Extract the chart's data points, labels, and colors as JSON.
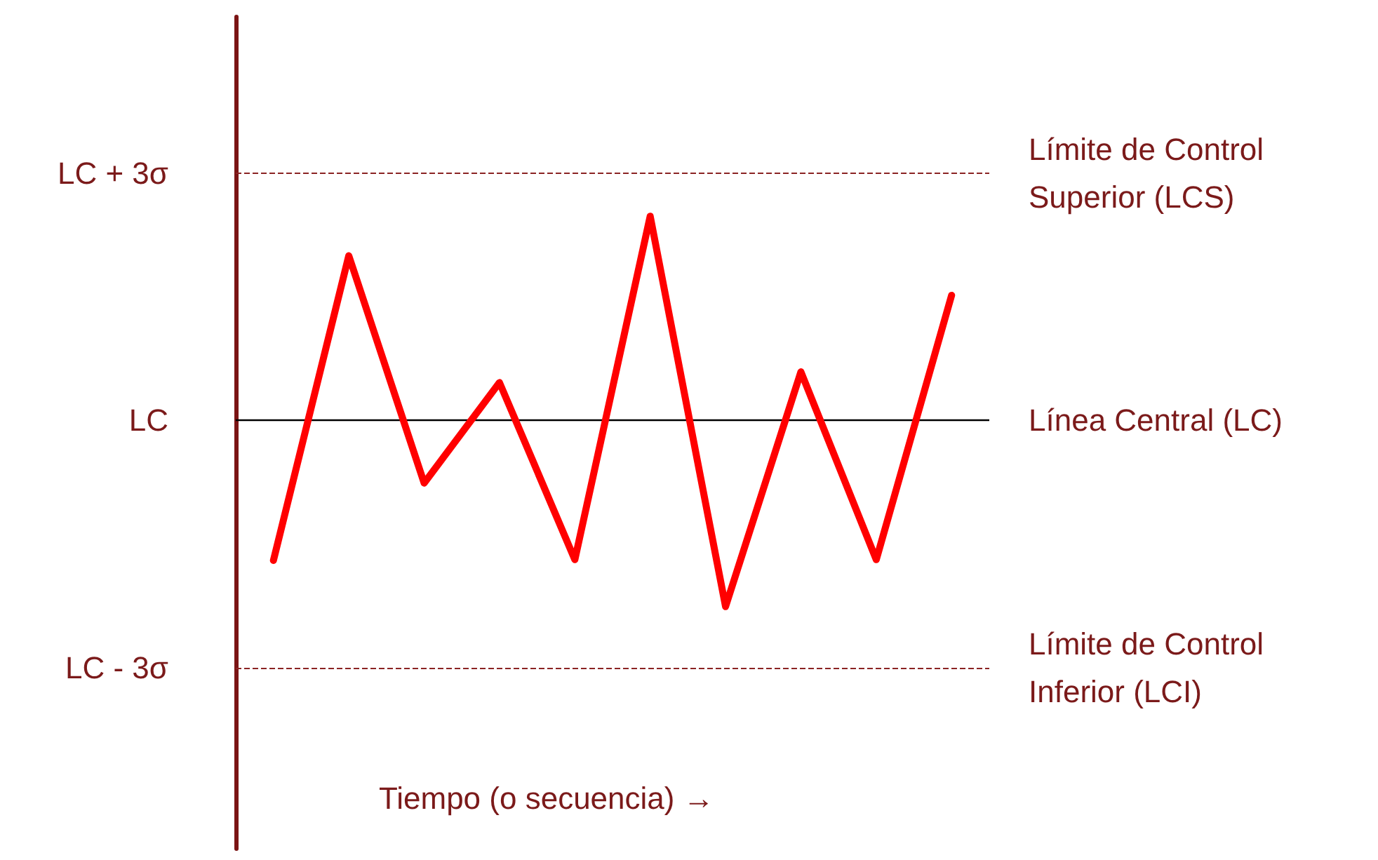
{
  "chart_data": {
    "type": "line",
    "xlabel": "Tiempo (o secuencia) →",
    "categories": [
      null,
      null,
      null,
      null,
      null,
      null,
      null,
      null,
      null,
      null
    ],
    "series": [
      {
        "color": "#ff0000",
        "values": [
          -1.7,
          2.0,
          -0.76,
          0.46,
          -1.69,
          2.48,
          -2.26,
          0.59,
          -1.69,
          1.52
        ]
      }
    ],
    "ylim": [
      -5.2,
      4.9
    ],
    "yticks": [
      {
        "value": 3,
        "label": "LC + 3σ"
      },
      {
        "value": 0,
        "label": "LC"
      },
      {
        "value": -3,
        "label": "LC - 3σ"
      }
    ],
    "ref_lines": [
      {
        "axis": "y",
        "value": 3,
        "label": "Límite de Control Superior (LCS)",
        "color": "#8b2323",
        "line_style": "dashed"
      },
      {
        "axis": "y",
        "value": 0,
        "label": "Línea Central (LC)",
        "color": "#000000",
        "line_style": "solid"
      },
      {
        "axis": "y",
        "value": -3,
        "label": "Límite de Control Inferior (LCI)",
        "color": "#8b2323",
        "line_style": "dashed"
      }
    ],
    "grid": false,
    "marker": "none",
    "line_style": "solid"
  }
}
